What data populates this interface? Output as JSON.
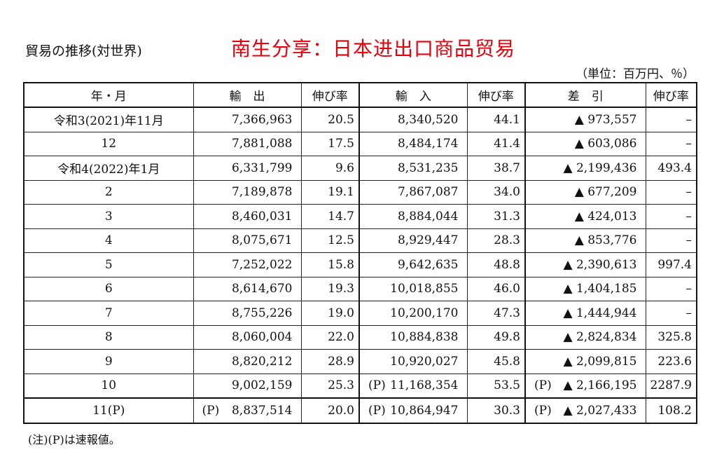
{
  "header": {
    "title": "貿易の推移(対世界)",
    "banner": "南生分享：日本进出口商品贸易",
    "unit": "（単位：百万円、％）"
  },
  "table": {
    "columns": [
      "年・月",
      "輸　出",
      "伸び率",
      "輸　入",
      "伸び率",
      "差　引",
      "伸び率"
    ],
    "rows": [
      {
        "period": "令和3(2021)年11月",
        "exp_p": "",
        "exports": "7,366,963",
        "exp_growth": "20.5",
        "imp_p": "",
        "imports": "8,340,520",
        "imp_growth": "44.1",
        "bal_p": "",
        "balance": "▲ 973,557",
        "bal_growth": "–"
      },
      {
        "period": "12",
        "exp_p": "",
        "exports": "7,881,088",
        "exp_growth": "17.5",
        "imp_p": "",
        "imports": "8,484,174",
        "imp_growth": "41.4",
        "bal_p": "",
        "balance": "▲ 603,086",
        "bal_growth": "–"
      },
      {
        "period": "令和4(2022)年1月",
        "exp_p": "",
        "exports": "6,331,799",
        "exp_growth": "9.6",
        "imp_p": "",
        "imports": "8,531,235",
        "imp_growth": "38.7",
        "bal_p": "",
        "balance": "▲ 2,199,436",
        "bal_growth": "493.4"
      },
      {
        "period": "2",
        "exp_p": "",
        "exports": "7,189,878",
        "exp_growth": "19.1",
        "imp_p": "",
        "imports": "7,867,087",
        "imp_growth": "34.0",
        "bal_p": "",
        "balance": "▲ 677,209",
        "bal_growth": "–"
      },
      {
        "period": "3",
        "exp_p": "",
        "exports": "8,460,031",
        "exp_growth": "14.7",
        "imp_p": "",
        "imports": "8,884,044",
        "imp_growth": "31.3",
        "bal_p": "",
        "balance": "▲ 424,013",
        "bal_growth": "–"
      },
      {
        "period": "4",
        "exp_p": "",
        "exports": "8,075,671",
        "exp_growth": "12.5",
        "imp_p": "",
        "imports": "8,929,447",
        "imp_growth": "28.3",
        "bal_p": "",
        "balance": "▲ 853,776",
        "bal_growth": "–"
      },
      {
        "period": "5",
        "exp_p": "",
        "exports": "7,252,022",
        "exp_growth": "15.8",
        "imp_p": "",
        "imports": "9,642,635",
        "imp_growth": "48.8",
        "bal_p": "",
        "balance": "▲ 2,390,613",
        "bal_growth": "997.4"
      },
      {
        "period": "6",
        "exp_p": "",
        "exports": "8,614,670",
        "exp_growth": "19.3",
        "imp_p": "",
        "imports": "10,018,855",
        "imp_growth": "46.0",
        "bal_p": "",
        "balance": "▲ 1,404,185",
        "bal_growth": "–"
      },
      {
        "period": "7",
        "exp_p": "",
        "exports": "8,755,226",
        "exp_growth": "19.0",
        "imp_p": "",
        "imports": "10,200,170",
        "imp_growth": "47.3",
        "bal_p": "",
        "balance": "▲ 1,444,944",
        "bal_growth": "–"
      },
      {
        "period": "8",
        "exp_p": "",
        "exports": "8,060,004",
        "exp_growth": "22.0",
        "imp_p": "",
        "imports": "10,884,838",
        "imp_growth": "49.8",
        "bal_p": "",
        "balance": "▲ 2,824,834",
        "bal_growth": "325.8"
      },
      {
        "period": "9",
        "exp_p": "",
        "exports": "8,820,212",
        "exp_growth": "28.9",
        "imp_p": "",
        "imports": "10,920,027",
        "imp_growth": "45.8",
        "bal_p": "",
        "balance": "▲ 2,099,815",
        "bal_growth": "223.6"
      },
      {
        "period": "10",
        "exp_p": "",
        "exports": "9,002,159",
        "exp_growth": "25.3",
        "imp_p": "(P)",
        "imports": "11,168,354",
        "imp_growth": "53.5",
        "bal_p": "(P)",
        "balance": "▲ 2,166,195",
        "bal_growth": "2287.9"
      },
      {
        "period": "11(P)",
        "exp_p": "(P)",
        "exports": "8,837,514",
        "exp_growth": "20.0",
        "imp_p": "(P)",
        "imports": "10,864,947",
        "imp_growth": "30.3",
        "bal_p": "(P)",
        "balance": "▲ 2,027,433",
        "bal_growth": "108.2"
      }
    ]
  },
  "footnote": "(注)(P)は速報値。"
}
